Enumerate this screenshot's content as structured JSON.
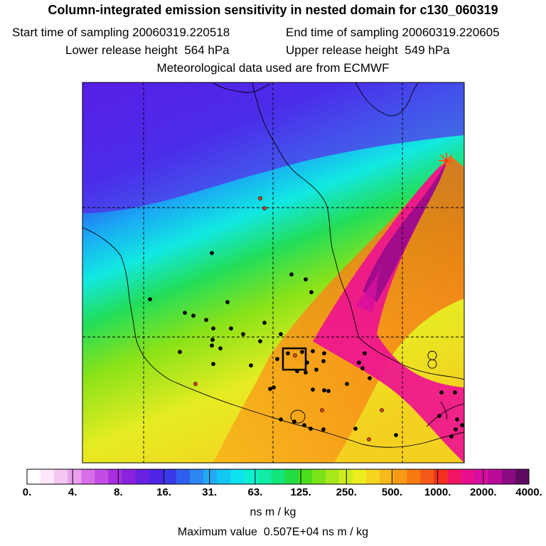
{
  "title": "Column-integrated emission sensitivity in nested domain for c130_060319",
  "start_label": "Start time of sampling",
  "start_value": "20060319.220518",
  "end_label": "End time of sampling",
  "end_value": "20060319.220605",
  "lower_label": "Lower release height",
  "lower_value": "564 hPa",
  "upper_label": "Upper release height",
  "upper_value": "549 hPa",
  "met_line": "Meteorological data used are from ECMWF",
  "units": "ns m / kg",
  "max_label": "Maximum value",
  "max_value": "0.507E+04",
  "max_units": "ns m / kg",
  "colors": {
    "scale": [
      "#ffffff",
      "#fde7fb",
      "#f6c6f3",
      "#eaa0ee",
      "#d770e8",
      "#c24ce4",
      "#a82fe0",
      "#8a22e0",
      "#6a20e0",
      "#4c25e5",
      "#3a3ae8",
      "#2f5fee",
      "#2b86f2",
      "#21aaf4",
      "#14c8f4",
      "#0ee2ee",
      "#0ef0d2",
      "#0eeca8",
      "#12e57a",
      "#22de44",
      "#48de1c",
      "#7ae216",
      "#a6e81c",
      "#cfec1e",
      "#ecee20",
      "#f6d420",
      "#f8b81c",
      "#f89a16",
      "#f87a12",
      "#f65a18",
      "#f4301e",
      "#f01664",
      "#e8108e",
      "#d80ea0",
      "#b80c98",
      "#8c0a84",
      "#5e0a62"
    ]
  },
  "chart_data": {
    "type": "heatmap",
    "title": "Column-integrated emission sensitivity in nested domain for c130_060319",
    "colorbar": {
      "tick_labels": [
        "0.",
        "4.",
        "8.",
        "16.",
        "31.",
        "63.",
        "125.",
        "250.",
        "500.",
        "1000.",
        "2000.",
        "4000."
      ],
      "tick_values": [
        0,
        4,
        8,
        16,
        31,
        63,
        125,
        250,
        500,
        1000,
        2000,
        4000
      ],
      "units": "ns m / kg"
    },
    "maximum_value": 5070,
    "release_height_hPa": [
      564,
      549
    ],
    "sampling_start": "20060319.220518",
    "sampling_end": "20060319.220605"
  }
}
